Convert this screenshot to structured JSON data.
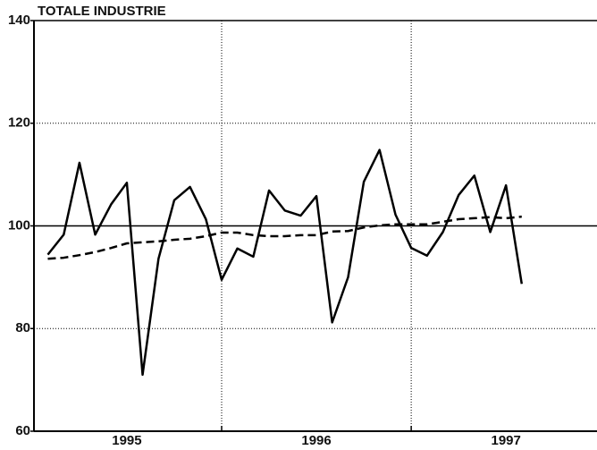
{
  "chart_data": {
    "type": "line",
    "title": "TOTALE INDUSTRIE",
    "x": [
      1995.083,
      1995.167,
      1995.25,
      1995.333,
      1995.417,
      1995.5,
      1995.583,
      1995.667,
      1995.75,
      1995.833,
      1995.917,
      1996.0,
      1996.083,
      1996.167,
      1996.25,
      1996.333,
      1996.417,
      1996.5,
      1996.583,
      1996.667,
      1996.75,
      1996.833,
      1996.917,
      1997.0,
      1997.083,
      1997.167,
      1997.25,
      1997.333,
      1997.417,
      1997.5,
      1997.583
    ],
    "series": [
      {
        "color": "#000000",
        "dash": "solid",
        "values": [
          94.4,
          98.3,
          112.3,
          98.3,
          104.2,
          108.4,
          71,
          93.6,
          105,
          107.6,
          101.3,
          89.5,
          95.6,
          94,
          106.9,
          103,
          102,
          105.8,
          81.2,
          90,
          108.6,
          114.8,
          102.2,
          95.7,
          94.2,
          98.8,
          106,
          109.8,
          98.8,
          107.9,
          88.7
        ]
      },
      {
        "color": "#000000",
        "dash": "dashed",
        "values": [
          93.6,
          93.8,
          94.3,
          94.9,
          95.7,
          96.6,
          96.8,
          97,
          97.3,
          97.5,
          98,
          98.7,
          98.7,
          98.2,
          98,
          98,
          98.2,
          98.2,
          98.9,
          99,
          99.7,
          100.1,
          100.3,
          100.3,
          100.3,
          100.8,
          101.3,
          101.5,
          101.7,
          101.5,
          101.8
        ]
      }
    ],
    "xlim": [
      1995.01,
      1997.98
    ],
    "xticks": [
      1996,
      1997
    ],
    "year_labels": [
      "1995",
      "1996",
      "1997"
    ],
    "ylim": [
      60,
      140
    ],
    "yticks": [
      60,
      80,
      100,
      120,
      140
    ],
    "reference_line": 100,
    "grid": true
  }
}
